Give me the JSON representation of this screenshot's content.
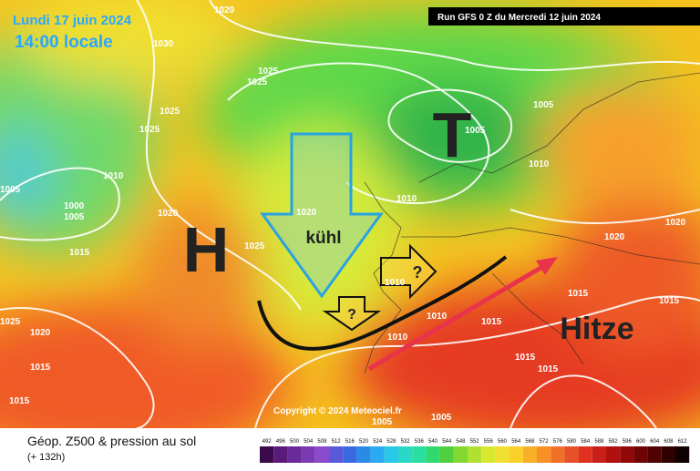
{
  "header": {
    "date": "Lundi 17 juin 2024",
    "time": "14:00 locale",
    "run": "Run GFS 0 Z du Mercredi 12 juin 2024"
  },
  "map_labels": {
    "low": "T",
    "high": "H",
    "cool": "kühl",
    "question_1": "?",
    "question_2": "?",
    "heat": "Hitze",
    "copyright": "Copyright © 2024 Meteociel.fr"
  },
  "isobar_labels": [
    "1020",
    "1030",
    "1025",
    "1025",
    "1025",
    "1025",
    "1010",
    "1005",
    "1000",
    "1005",
    "1020",
    "1015",
    "1025",
    "1020",
    "1005",
    "1005",
    "1010",
    "1010",
    "1010",
    "1015",
    "1020",
    "1020",
    "1015",
    "1015",
    "1010",
    "1015",
    "1015",
    "1015",
    "1020",
    "1025",
    "1015",
    "1005",
    "1005",
    "1010"
  ],
  "legend": {
    "title": "Géop. Z500 & pression au sol",
    "lead": "(+ 132h)",
    "scale": [
      492,
      496,
      500,
      504,
      508,
      512,
      516,
      520,
      524,
      528,
      532,
      536,
      540,
      544,
      548,
      552,
      556,
      560,
      564,
      568,
      572,
      576,
      580,
      584,
      588,
      592,
      596,
      600,
      604,
      608,
      612
    ]
  }
}
